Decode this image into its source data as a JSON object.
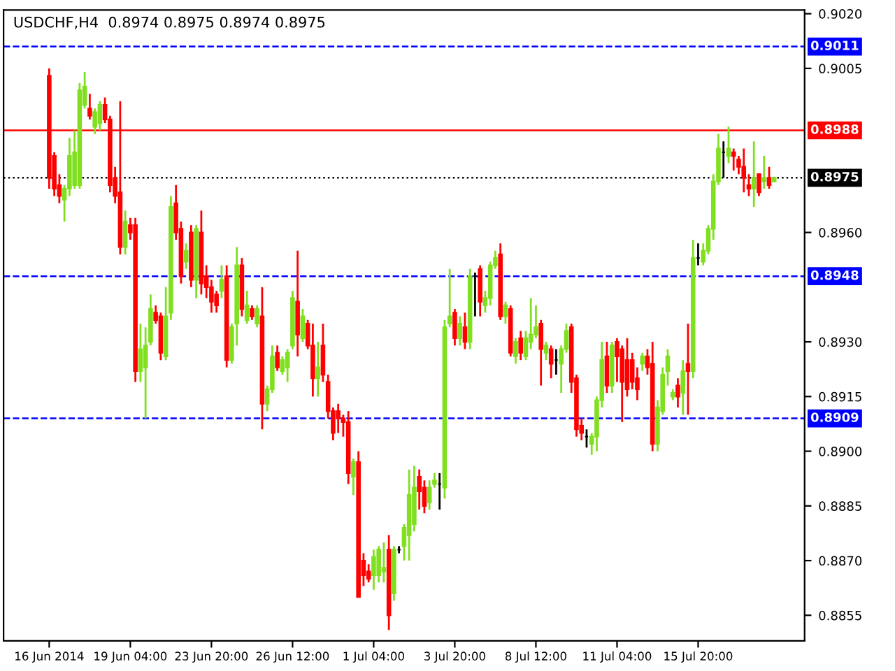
{
  "chart_data": {
    "type": "candlestick",
    "title": "USDCHF,H4  0.8974 0.8975 0.8974 0.8975",
    "categories": [
      "16 Jun 2014",
      null,
      null,
      null,
      null,
      null,
      null,
      null,
      null,
      null,
      null,
      null,
      null,
      null,
      null,
      null,
      "19 Jun 04:00",
      null,
      null,
      null,
      null,
      null,
      null,
      null,
      null,
      null,
      null,
      null,
      null,
      null,
      null,
      null,
      "23 Jun 20:00",
      null,
      null,
      null,
      null,
      null,
      null,
      null,
      null,
      null,
      null,
      null,
      null,
      null,
      null,
      null,
      "26 Jun 12:00",
      null,
      null,
      null,
      null,
      null,
      null,
      null,
      null,
      null,
      null,
      null,
      null,
      null,
      null,
      null,
      "1 Jul 04:00",
      null,
      null,
      null,
      null,
      null,
      null,
      null,
      null,
      null,
      null,
      null,
      null,
      null,
      null,
      null,
      "3 Jul 20:00",
      null,
      null,
      null,
      null,
      null,
      null,
      null,
      null,
      null,
      null,
      null,
      null,
      null,
      null,
      null,
      "8 Jul 12:00",
      null,
      null,
      null,
      null,
      null,
      null,
      null,
      null,
      null,
      null,
      null,
      null,
      null,
      null,
      null,
      "11 Jul 04:00",
      null,
      null,
      null,
      null,
      null,
      null,
      null,
      null,
      null,
      null,
      null,
      null,
      null,
      null,
      null,
      "15 Jul 20:00",
      null,
      null,
      null,
      null,
      null,
      null,
      null,
      null,
      null,
      null,
      null,
      null,
      null,
      null,
      null
    ],
    "ohlc": [
      [
        0.9003,
        0.9005,
        0.8972,
        0.8975
      ],
      [
        0.8981,
        0.8982,
        0.897,
        0.8972
      ],
      [
        0.8973,
        0.8976,
        0.8968,
        0.897
      ],
      [
        0.8969,
        0.8973,
        0.8963,
        0.8972
      ],
      [
        0.8972,
        0.8986,
        0.897,
        0.8981
      ],
      [
        0.8973,
        0.8988,
        0.8972,
        0.8982
      ],
      [
        0.8973,
        0.9001,
        0.8972,
        0.8999
      ],
      [
        0.8995,
        0.9004,
        0.8994,
        0.9
      ],
      [
        0.8994,
        0.8998,
        0.8991,
        0.8992
      ],
      [
        0.8989,
        0.8994,
        0.8987,
        0.8993
      ],
      [
        0.899,
        0.8996,
        0.8988,
        0.8995
      ],
      [
        0.8995,
        0.8997,
        0.899,
        0.8991
      ],
      [
        0.8991,
        0.8992,
        0.8971,
        0.8973
      ],
      [
        0.8975,
        0.8978,
        0.8968,
        0.897
      ],
      [
        0.8971,
        0.8996,
        0.8954,
        0.8956
      ],
      [
        0.8956,
        0.8966,
        0.8954,
        0.8963
      ],
      [
        0.8962,
        0.8964,
        0.8958,
        0.896
      ],
      [
        0.8962,
        0.8964,
        0.8919,
        0.8922
      ],
      [
        0.8922,
        0.8935,
        0.8919,
        0.8928
      ],
      [
        0.8923,
        0.8934,
        0.8909,
        0.8929
      ],
      [
        0.893,
        0.8943,
        0.8929,
        0.8939
      ],
      [
        0.8938,
        0.894,
        0.8935,
        0.8936
      ],
      [
        0.8937,
        0.8938,
        0.8925,
        0.8927
      ],
      [
        0.8926,
        0.8945,
        0.8925,
        0.8937
      ],
      [
        0.8938,
        0.897,
        0.8936,
        0.8967
      ],
      [
        0.8968,
        0.8973,
        0.8958,
        0.896
      ],
      [
        0.8961,
        0.8963,
        0.8946,
        0.8948
      ],
      [
        0.8952,
        0.8957,
        0.895,
        0.8955
      ],
      [
        0.896,
        0.8962,
        0.8945,
        0.8947
      ],
      [
        0.8947,
        0.8962,
        0.8942,
        0.8961
      ],
      [
        0.896,
        0.8966,
        0.8943,
        0.8946
      ],
      [
        0.8948,
        0.8951,
        0.8942,
        0.8945
      ],
      [
        0.8945,
        0.8947,
        0.8938,
        0.8941
      ],
      [
        0.8943,
        0.8944,
        0.8938,
        0.894
      ],
      [
        0.8944,
        0.8951,
        0.8942,
        0.8947
      ],
      [
        0.8948,
        0.8951,
        0.8923,
        0.8925
      ],
      [
        0.8925,
        0.8935,
        0.8924,
        0.8934
      ],
      [
        0.8935,
        0.8956,
        0.8929,
        0.8951
      ],
      [
        0.8951,
        0.8953,
        0.8937,
        0.8939
      ],
      [
        0.8936,
        0.8944,
        0.8935,
        0.894
      ],
      [
        0.8939,
        0.894,
        0.8936,
        0.8937
      ],
      [
        0.8935,
        0.894,
        0.8934,
        0.8939
      ],
      [
        0.8937,
        0.8945,
        0.8906,
        0.8913
      ],
      [
        0.8913,
        0.8918,
        0.8911,
        0.8917
      ],
      [
        0.8917,
        0.8929,
        0.8916,
        0.8926
      ],
      [
        0.8927,
        0.8929,
        0.8922,
        0.8923
      ],
      [
        0.8922,
        0.8926,
        0.8921,
        0.8925
      ],
      [
        0.8923,
        0.8928,
        0.8919,
        0.8927
      ],
      [
        0.8929,
        0.8944,
        0.8928,
        0.8942
      ],
      [
        0.8941,
        0.8955,
        0.8926,
        0.8932
      ],
      [
        0.8931,
        0.8939,
        0.893,
        0.8937
      ],
      [
        0.8935,
        0.8936,
        0.8928,
        0.8929
      ],
      [
        0.8929,
        0.8935,
        0.8915,
        0.892
      ],
      [
        0.892,
        0.893,
        0.8915,
        0.8923
      ],
      [
        0.8929,
        0.8935,
        0.8919,
        0.8921
      ],
      [
        0.8919,
        0.8921,
        0.8909,
        0.8911
      ],
      [
        0.8911,
        0.8912,
        0.8903,
        0.8905
      ],
      [
        0.8911,
        0.8913,
        0.8905,
        0.8909
      ],
      [
        0.8909,
        0.891,
        0.8904,
        0.8908
      ],
      [
        0.8908,
        0.8911,
        0.8891,
        0.8894
      ],
      [
        0.8893,
        0.8898,
        0.8888,
        0.8897
      ],
      [
        0.8897,
        0.89,
        0.886,
        0.886
      ],
      [
        0.887,
        0.8872,
        0.8863,
        0.8866
      ],
      [
        0.8867,
        0.8869,
        0.8864,
        0.8865
      ],
      [
        0.8866,
        0.8873,
        0.8862,
        0.8871
      ],
      [
        0.8866,
        0.8874,
        0.8864,
        0.8873
      ],
      [
        0.8867,
        0.8875,
        0.8864,
        0.8868
      ],
      [
        0.8873,
        0.8877,
        0.8851,
        0.8855
      ],
      [
        0.8861,
        0.8874,
        0.8859,
        0.8873
      ],
      [
        0.8873,
        0.8874,
        0.8872,
        0.8873
      ],
      [
        0.8874,
        0.888,
        0.887,
        0.8879
      ],
      [
        0.8877,
        0.8895,
        0.887,
        0.8888
      ],
      [
        0.888,
        0.8896,
        0.8878,
        0.889
      ],
      [
        0.8893,
        0.8895,
        0.8884,
        0.8889
      ],
      [
        0.889,
        0.8892,
        0.8883,
        0.8885
      ],
      [
        0.8886,
        0.8892,
        0.8884,
        0.889
      ],
      [
        0.8891,
        0.8894,
        0.889,
        0.8892
      ],
      [
        0.8891,
        0.8894,
        0.8884,
        0.8891
      ],
      [
        0.889,
        0.8936,
        0.8887,
        0.8934
      ],
      [
        0.8935,
        0.895,
        0.8934,
        0.8937
      ],
      [
        0.8938,
        0.8939,
        0.8929,
        0.8931
      ],
      [
        0.8931,
        0.8937,
        0.8929,
        0.8935
      ],
      [
        0.8934,
        0.8938,
        0.8928,
        0.893
      ],
      [
        0.893,
        0.895,
        0.8928,
        0.8948
      ],
      [
        0.8948,
        0.8949,
        0.8937,
        0.8948
      ],
      [
        0.895,
        0.8951,
        0.8937,
        0.8941
      ],
      [
        0.894,
        0.8944,
        0.8938,
        0.8942
      ],
      [
        0.8942,
        0.8952,
        0.894,
        0.8951
      ],
      [
        0.8951,
        0.8955,
        0.895,
        0.8953
      ],
      [
        0.8954,
        0.8957,
        0.8936,
        0.8937
      ],
      [
        0.8937,
        0.8941,
        0.8935,
        0.894
      ],
      [
        0.8939,
        0.894,
        0.8926,
        0.8927
      ],
      [
        0.8926,
        0.8931,
        0.8924,
        0.893
      ],
      [
        0.8931,
        0.8933,
        0.8925,
        0.8927
      ],
      [
        0.8926,
        0.8933,
        0.8925,
        0.8931
      ],
      [
        0.893,
        0.8942,
        0.8928,
        0.8932
      ],
      [
        0.8932,
        0.894,
        0.8931,
        0.8934
      ],
      [
        0.8935,
        0.8936,
        0.8918,
        0.8928
      ],
      [
        0.8927,
        0.893,
        0.8925,
        0.8929
      ],
      [
        0.8928,
        0.8929,
        0.892,
        0.8924
      ],
      [
        0.8925,
        0.8928,
        0.8921,
        0.8925
      ],
      [
        0.8924,
        0.8929,
        0.8916,
        0.8928
      ],
      [
        0.8928,
        0.8935,
        0.8927,
        0.8933
      ],
      [
        0.8934,
        0.8935,
        0.8916,
        0.8919
      ],
      [
        0.892,
        0.8921,
        0.8904,
        0.8906
      ],
      [
        0.8907,
        0.8909,
        0.8903,
        0.8905
      ],
      [
        0.8904,
        0.8906,
        0.8901,
        0.8904
      ],
      [
        0.8902,
        0.8905,
        0.8899,
        0.8904
      ],
      [
        0.8904,
        0.8915,
        0.89,
        0.8914
      ],
      [
        0.8914,
        0.893,
        0.8912,
        0.8925
      ],
      [
        0.8926,
        0.893,
        0.8916,
        0.8918
      ],
      [
        0.8918,
        0.893,
        0.8916,
        0.8929
      ],
      [
        0.893,
        0.8931,
        0.8919,
        0.8926
      ],
      [
        0.8928,
        0.8929,
        0.8908,
        0.8919
      ],
      [
        0.8925,
        0.8931,
        0.8915,
        0.8917
      ],
      [
        0.8925,
        0.8927,
        0.8917,
        0.8919
      ],
      [
        0.892,
        0.8923,
        0.8914,
        0.8917
      ],
      [
        0.8924,
        0.8927,
        0.8922,
        0.8926
      ],
      [
        0.8926,
        0.8928,
        0.8921,
        0.8923
      ],
      [
        0.8924,
        0.893,
        0.89,
        0.8902
      ],
      [
        0.8902,
        0.8914,
        0.89,
        0.8912
      ],
      [
        0.8911,
        0.8923,
        0.891,
        0.8921
      ],
      [
        0.8922,
        0.8928,
        0.8918,
        0.8926
      ],
      [
        0.8915,
        0.8917,
        0.8914,
        0.8916
      ],
      [
        0.8918,
        0.892,
        0.8912,
        0.8915
      ],
      [
        0.8916,
        0.8925,
        0.891,
        0.8922
      ],
      [
        0.8924,
        0.8935,
        0.891,
        0.8922
      ],
      [
        0.8922,
        0.8958,
        0.892,
        0.8953
      ],
      [
        0.8953,
        0.8957,
        0.8951,
        0.8953
      ],
      [
        0.8952,
        0.8957,
        0.8951,
        0.8955
      ],
      [
        0.8955,
        0.8962,
        0.8954,
        0.8961
      ],
      [
        0.8961,
        0.8976,
        0.8958,
        0.8974
      ],
      [
        0.8974,
        0.8987,
        0.8973,
        0.8983
      ],
      [
        0.8982,
        0.8985,
        0.8975,
        0.8982
      ],
      [
        0.8981,
        0.8989,
        0.8979,
        0.8983
      ],
      [
        0.8982,
        0.8983,
        0.8977,
        0.8981
      ],
      [
        0.898,
        0.8981,
        0.8976,
        0.8978
      ],
      [
        0.8978,
        0.8983,
        0.8971,
        0.8975
      ],
      [
        0.8973,
        0.8976,
        0.897,
        0.8972
      ],
      [
        0.8972,
        0.8985,
        0.8967,
        0.8975
      ],
      [
        0.8976,
        0.8976,
        0.897,
        0.8971
      ],
      [
        0.8974,
        0.8981,
        0.8972,
        0.8975
      ],
      [
        0.8975,
        0.8978,
        0.8972,
        0.8973
      ],
      [
        0.8974,
        0.8975,
        0.8974,
        0.8975
      ]
    ],
    "colors": [
      "#ff0000",
      "#ff0000",
      "#ff0000",
      "#80e020",
      "#80e020",
      "#80e020",
      "#80e020",
      "#80e020",
      "#ff0000",
      "#80e020",
      "#80e020",
      "#ff0000",
      "#ff0000",
      "#ff0000",
      "#ff0000",
      "#80e020",
      "#ff0000",
      "#ff0000",
      "#80e020",
      "#80e020",
      "#80e020",
      "#ff0000",
      "#ff0000",
      "#80e020",
      "#80e020",
      "#ff0000",
      "#ff0000",
      "#80e020",
      "#ff0000",
      "#80e020",
      "#ff0000",
      "#ff0000",
      "#ff0000",
      "#ff0000",
      "#80e020",
      "#ff0000",
      "#80e020",
      "#80e020",
      "#ff0000",
      "#80e020",
      "#ff0000",
      "#80e020",
      "#ff0000",
      "#80e020",
      "#80e020",
      "#ff0000",
      "#80e020",
      "#80e020",
      "#80e020",
      "#ff0000",
      "#80e020",
      "#ff0000",
      "#ff0000",
      "#80e020",
      "#ff0000",
      "#ff0000",
      "#ff0000",
      "#ff0000",
      "#ff0000",
      "#ff0000",
      "#80e020",
      "#ff0000",
      "#ff0000",
      "#ff0000",
      "#80e020",
      "#80e020",
      "#80e020",
      "#ff0000",
      "#80e020",
      "#000000",
      "#80e020",
      "#80e020",
      "#80e020",
      "#ff0000",
      "#ff0000",
      "#80e020",
      "#80e020",
      "#000000",
      "#80e020",
      "#80e020",
      "#ff0000",
      "#80e020",
      "#ff0000",
      "#80e020",
      "#000000",
      "#ff0000",
      "#80e020",
      "#80e020",
      "#80e020",
      "#ff0000",
      "#80e020",
      "#ff0000",
      "#80e020",
      "#ff0000",
      "#80e020",
      "#80e020",
      "#80e020",
      "#ff0000",
      "#80e020",
      "#ff0000",
      "#000000",
      "#80e020",
      "#80e020",
      "#ff0000",
      "#ff0000",
      "#ff0000",
      "#000000",
      "#80e020",
      "#80e020",
      "#80e020",
      "#ff0000",
      "#80e020",
      "#ff0000",
      "#ff0000",
      "#ff0000",
      "#ff0000",
      "#ff0000",
      "#80e020",
      "#ff0000",
      "#ff0000",
      "#80e020",
      "#80e020",
      "#80e020",
      "#80e020",
      "#ff0000",
      "#80e020",
      "#ff0000",
      "#80e020",
      "#000000",
      "#80e020",
      "#80e020",
      "#80e020",
      "#80e020",
      "#000000",
      "#80e020",
      "#ff0000",
      "#ff0000",
      "#ff0000",
      "#ff0000",
      "#80e020",
      "#ff0000",
      "#80e020",
      "#ff0000",
      "#80e020"
    ],
    "ylim": [
      0.8848,
      0.9021
    ],
    "yticks": [
      {
        "value": 0.902,
        "label": "0.9020"
      },
      0.9005,
      {
        "value": 0.896,
        "label": "0.8960"
      },
      {
        "value": 0.893,
        "label": "0.8930"
      },
      0.8915,
      {
        "value": 0.89,
        "label": "0.8900"
      },
      0.8885,
      {
        "value": 0.887,
        "label": "0.8870"
      },
      0.8855
    ],
    "ref_lines": [
      {
        "axis": "y",
        "value": 0.9011,
        "label": "0.9011",
        "color": "#0000ff",
        "line_style": "dashed"
      },
      {
        "axis": "y",
        "value": 0.8988,
        "label": "0.8988",
        "color": "#ff0000",
        "line_style": "solid"
      },
      {
        "axis": "y",
        "value": 0.8975,
        "label": "0.8975",
        "color": "#000000",
        "line_style": "dotted"
      },
      {
        "axis": "y",
        "value": 0.8948,
        "label": "0.8948",
        "color": "#0000ff",
        "line_style": "dashed"
      },
      {
        "axis": "y",
        "value": 0.8909,
        "label": "0.8909",
        "color": "#0000ff",
        "line_style": "dashed"
      }
    ]
  }
}
